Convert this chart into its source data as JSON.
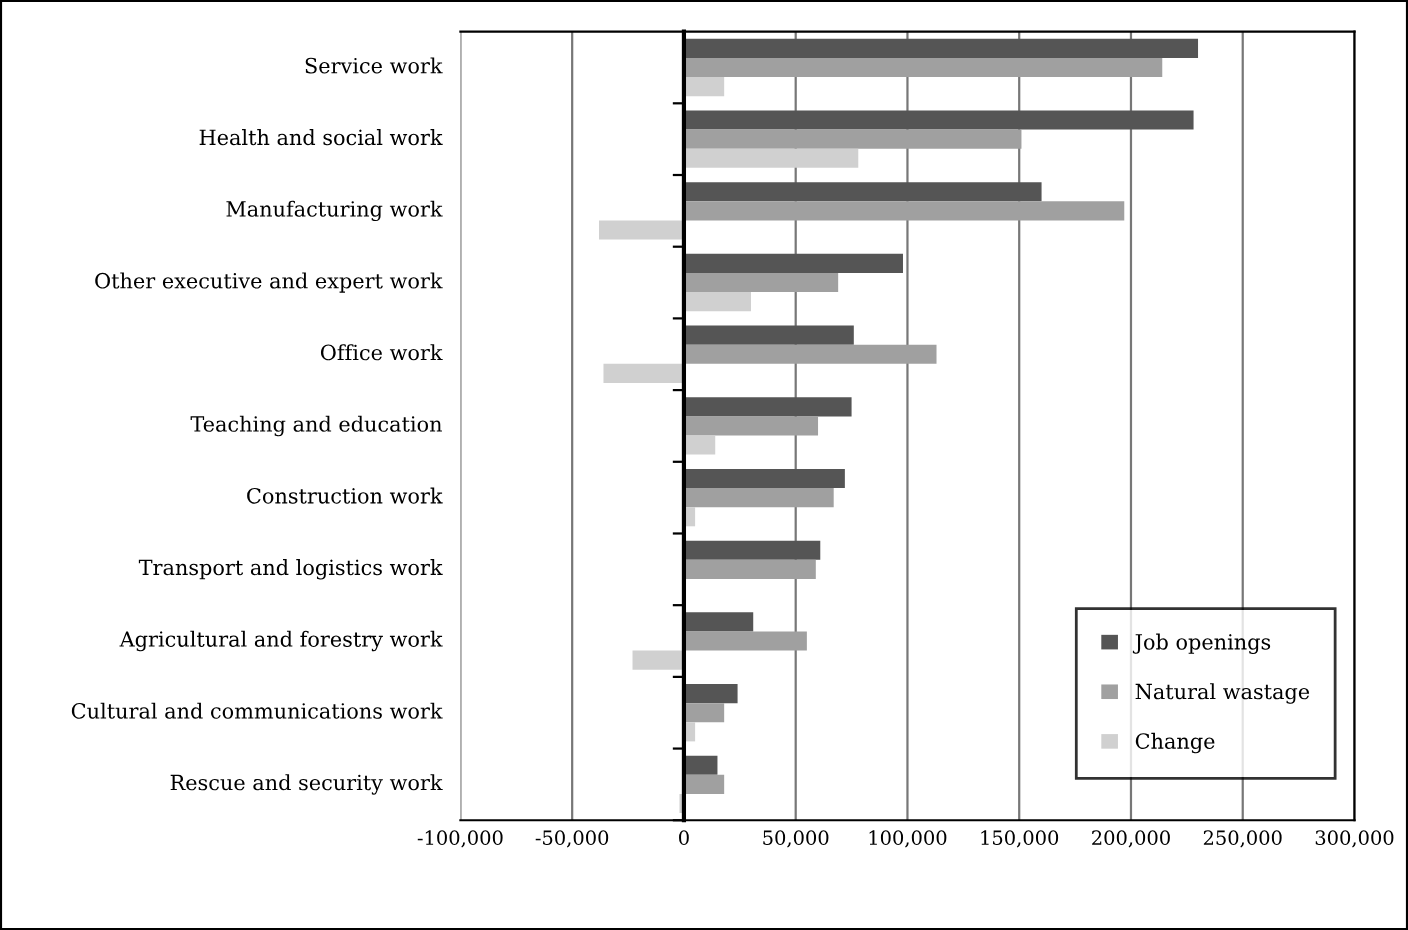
{
  "chart_data": {
    "type": "bar",
    "orientation": "horizontal",
    "categories": [
      "Service work",
      "Health and social work",
      "Manufacturing work",
      "Other executive and expert work",
      "Office work",
      "Teaching and education",
      "Construction work",
      "Transport and logistics work",
      "Agricultural and forestry work",
      "Cultural and communications work",
      "Rescue and security work"
    ],
    "series": [
      {
        "name": "Job openings",
        "color": "#555555",
        "values": [
          230000,
          228000,
          160000,
          98000,
          76000,
          75000,
          72000,
          61000,
          31000,
          24000,
          15000
        ]
      },
      {
        "name": "Natural wastage",
        "color": "#a0a0a0",
        "values": [
          214000,
          151000,
          197000,
          69000,
          113000,
          60000,
          67000,
          59000,
          55000,
          18000,
          18000
        ]
      },
      {
        "name": "Change",
        "color": "#d0d0d0",
        "values": [
          18000,
          78000,
          -38000,
          30000,
          -36000,
          14000,
          5000,
          null,
          -23000,
          5000,
          -2000
        ]
      }
    ],
    "xlim": [
      -100000,
      300000
    ],
    "xticks": [
      {
        "value": -100000,
        "label": "-100,000"
      },
      {
        "value": -50000,
        "label": "-50,000"
      },
      0,
      {
        "value": 50000,
        "label": "50,000"
      },
      {
        "value": 100000,
        "label": "100,000"
      },
      {
        "value": 150000,
        "label": "150,000"
      },
      {
        "value": 200000,
        "label": "200,000"
      },
      {
        "value": 250000,
        "label": "250,000"
      },
      {
        "value": 300000,
        "label": "300,000"
      }
    ],
    "grid": "x",
    "legend": "bottom right"
  }
}
